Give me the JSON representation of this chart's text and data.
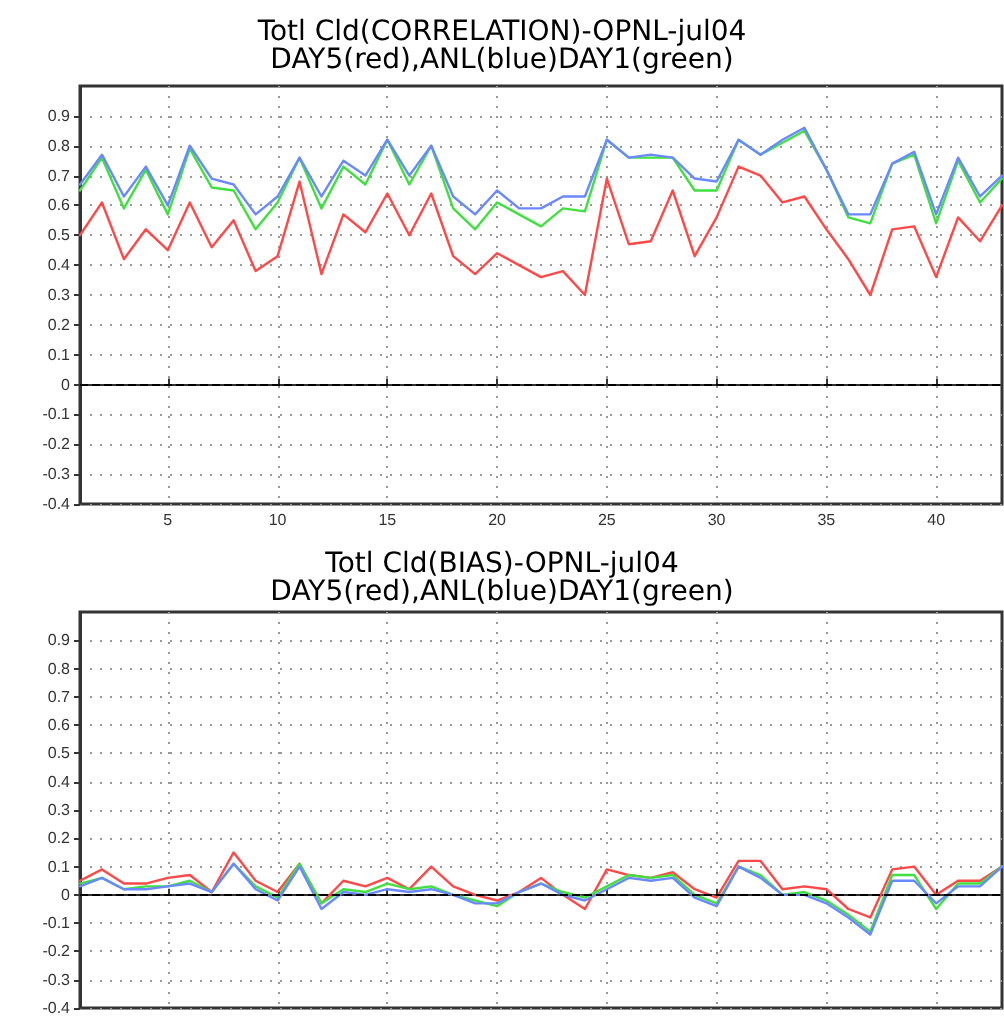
{
  "chart_data": [
    {
      "type": "line",
      "title": "Totl Cld(CORRELATION)-OPNL-jul04",
      "subtitle": "DAY5(red),ANL(blue)DAY1(green)",
      "x": [
        1,
        2,
        3,
        4,
        5,
        6,
        7,
        8,
        9,
        10,
        11,
        12,
        13,
        14,
        15,
        16,
        17,
        18,
        19,
        20,
        21,
        22,
        23,
        24,
        25,
        26,
        27,
        28,
        29,
        30,
        31,
        32,
        33,
        34,
        35,
        36,
        37,
        38,
        39,
        40,
        41,
        42,
        43
      ],
      "series": [
        {
          "color": "#ff4848",
          "values": [
            0.5,
            0.61,
            0.42,
            0.52,
            0.45,
            0.61,
            0.46,
            0.55,
            0.38,
            0.43,
            0.68,
            0.37,
            0.57,
            0.51,
            0.64,
            0.5,
            0.64,
            0.43,
            0.37,
            0.44,
            0.4,
            0.36,
            0.38,
            0.3,
            0.69,
            0.47,
            0.48,
            0.65,
            0.43,
            0.56,
            0.73,
            0.7,
            0.61,
            0.63,
            0.52,
            0.42,
            0.3,
            0.52,
            0.53,
            0.36,
            0.56,
            0.48,
            0.6
          ]
        },
        {
          "color": "#40e040",
          "values": [
            0.65,
            0.76,
            0.59,
            0.72,
            0.57,
            0.79,
            0.66,
            0.65,
            0.52,
            0.61,
            0.76,
            0.59,
            0.73,
            0.67,
            0.82,
            0.67,
            0.8,
            0.59,
            0.52,
            0.61,
            0.57,
            0.53,
            0.59,
            0.58,
            0.82,
            0.76,
            0.76,
            0.76,
            0.65,
            0.65,
            0.82,
            0.77,
            0.81,
            0.85,
            0.72,
            0.56,
            0.54,
            0.74,
            0.77,
            0.54,
            0.75,
            0.61,
            0.69
          ]
        },
        {
          "color": "#6a88ff",
          "values": [
            0.67,
            0.77,
            0.63,
            0.73,
            0.6,
            0.8,
            0.69,
            0.67,
            0.57,
            0.63,
            0.76,
            0.63,
            0.75,
            0.7,
            0.82,
            0.7,
            0.8,
            0.63,
            0.57,
            0.65,
            0.59,
            0.59,
            0.63,
            0.63,
            0.82,
            0.76,
            0.77,
            0.76,
            0.69,
            0.68,
            0.82,
            0.77,
            0.82,
            0.86,
            0.72,
            0.57,
            0.57,
            0.74,
            0.78,
            0.57,
            0.76,
            0.63,
            0.7
          ]
        }
      ],
      "xlim": [
        1,
        43
      ],
      "xticks": [
        5,
        10,
        15,
        20,
        25,
        30,
        35,
        40
      ],
      "ylim": [
        -0.4,
        1.0
      ],
      "yticks": [
        -0.4,
        -0.3,
        -0.2,
        -0.1,
        0,
        0.1,
        0.2,
        0.3,
        0.4,
        0.5,
        0.6,
        0.7,
        0.8,
        0.9
      ],
      "ref_lines": [
        {
          "axis": "y",
          "value": 0,
          "color": "#000000",
          "line_style": "dashed"
        }
      ],
      "grid": true,
      "marker": "none",
      "line_style": "solid"
    },
    {
      "type": "line",
      "title": "Totl Cld(BIAS)-OPNL-jul04",
      "subtitle": "DAY5(red),ANL(blue)DAY1(green)",
      "x": [
        1,
        2,
        3,
        4,
        5,
        6,
        7,
        8,
        9,
        10,
        11,
        12,
        13,
        14,
        15,
        16,
        17,
        18,
        19,
        20,
        21,
        22,
        23,
        24,
        25,
        26,
        27,
        28,
        29,
        30,
        31,
        32,
        33,
        34,
        35,
        36,
        37,
        38,
        39,
        40,
        41,
        42,
        43
      ],
      "series": [
        {
          "color": "#ff4848",
          "values": [
            0.05,
            0.09,
            0.04,
            0.04,
            0.06,
            0.07,
            0.01,
            0.15,
            0.05,
            0.01,
            0.11,
            -0.03,
            0.05,
            0.03,
            0.06,
            0.02,
            0.1,
            0.03,
            0.0,
            -0.02,
            0.01,
            0.06,
            0.0,
            -0.05,
            0.09,
            0.07,
            0.06,
            0.08,
            0.02,
            -0.01,
            0.12,
            0.12,
            0.02,
            0.03,
            0.02,
            -0.05,
            -0.08,
            0.09,
            0.1,
            0.0,
            0.05,
            0.05,
            0.1
          ]
        },
        {
          "color": "#40e040",
          "values": [
            0.04,
            0.06,
            0.02,
            0.03,
            0.03,
            0.05,
            0.01,
            0.11,
            0.03,
            -0.01,
            0.11,
            -0.03,
            0.02,
            0.01,
            0.04,
            0.02,
            0.03,
            0.0,
            -0.02,
            -0.04,
            0.01,
            0.04,
            0.01,
            -0.01,
            0.03,
            0.07,
            0.06,
            0.07,
            0.0,
            -0.03,
            0.1,
            0.07,
            0.0,
            0.01,
            -0.02,
            -0.07,
            -0.13,
            0.07,
            0.07,
            -0.05,
            0.04,
            0.04,
            0.1
          ]
        },
        {
          "color": "#6a88ff",
          "values": [
            0.03,
            0.06,
            0.02,
            0.02,
            0.03,
            0.04,
            0.01,
            0.11,
            0.02,
            -0.02,
            0.1,
            -0.05,
            0.01,
            0.0,
            0.02,
            0.01,
            0.02,
            0.0,
            -0.03,
            -0.03,
            0.01,
            0.04,
            0.0,
            -0.02,
            0.02,
            0.06,
            0.05,
            0.06,
            -0.01,
            -0.04,
            0.1,
            0.06,
            0.0,
            0.0,
            -0.03,
            -0.08,
            -0.14,
            0.05,
            0.05,
            -0.03,
            0.03,
            0.03,
            0.1
          ]
        }
      ],
      "xlim": [
        1,
        43
      ],
      "xticks": [
        5,
        10,
        15,
        20,
        25,
        30,
        35,
        40
      ],
      "ylim": [
        -0.4,
        1.0
      ],
      "yticks": [
        -0.4,
        -0.3,
        -0.2,
        -0.1,
        0,
        0.1,
        0.2,
        0.3,
        0.4,
        0.5,
        0.6,
        0.7,
        0.8,
        0.9
      ],
      "ref_lines": [
        {
          "axis": "y",
          "value": 0,
          "color": "#000000",
          "line_style": "dashed"
        }
      ],
      "grid": true,
      "marker": "none",
      "line_style": "solid",
      "tick_labels": "y"
    }
  ]
}
